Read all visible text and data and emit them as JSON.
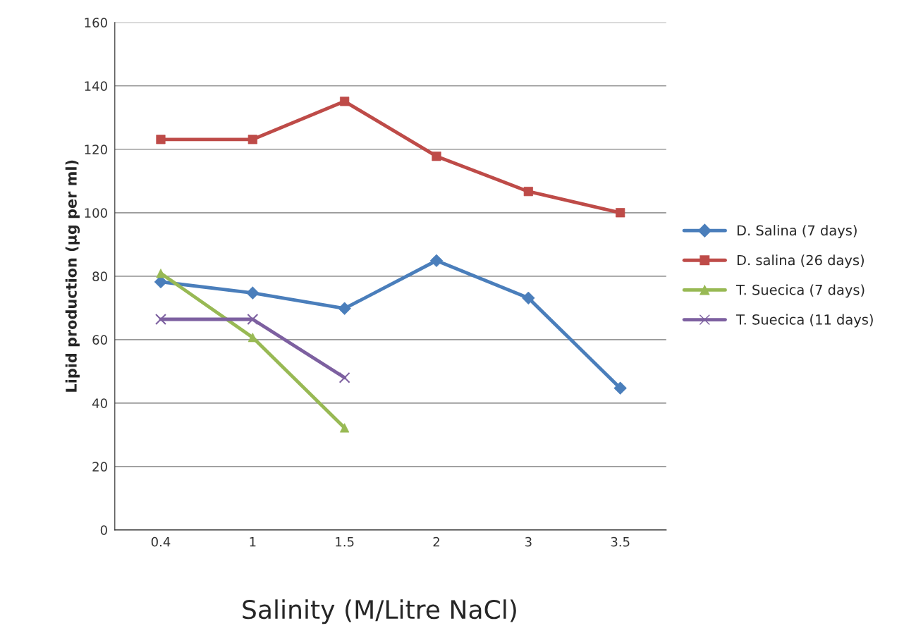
{
  "chart_data": {
    "type": "line",
    "xlabel": "Salinity (M/Litre NaCl)",
    "ylabel": "Lipid production (µg per ml)",
    "categories": [
      "0.4",
      "1",
      "1.5",
      "2",
      "3",
      "3.5"
    ],
    "series": [
      {
        "name": "D. Salina (7 days)",
        "color": "#4a7ebb",
        "marker": "diamond",
        "values": [
          78.2,
          74.7,
          69.8,
          84.9,
          73.1,
          44.7
        ]
      },
      {
        "name": "D. salina (26 days)",
        "color": "#be4b48",
        "marker": "square",
        "values": [
          123.1,
          123.1,
          135.1,
          117.8,
          106.7,
          100
        ]
      },
      {
        "name": "T. Suecica (7 days)",
        "color": "#98b954",
        "marker": "triangle",
        "values": [
          80.9,
          60.7,
          32.2,
          null,
          null,
          null
        ]
      },
      {
        "name": "T. Suecica (11 days)",
        "color": "#7d60a0",
        "marker": "cross",
        "values": [
          66.4,
          66.4,
          48,
          null,
          null,
          null
        ]
      }
    ],
    "ylim": [
      0,
      160
    ],
    "yticks": [
      0,
      20,
      40,
      60,
      80,
      100,
      120,
      140,
      160
    ],
    "grid": "y",
    "legend": "right",
    "line_style": "solid"
  }
}
